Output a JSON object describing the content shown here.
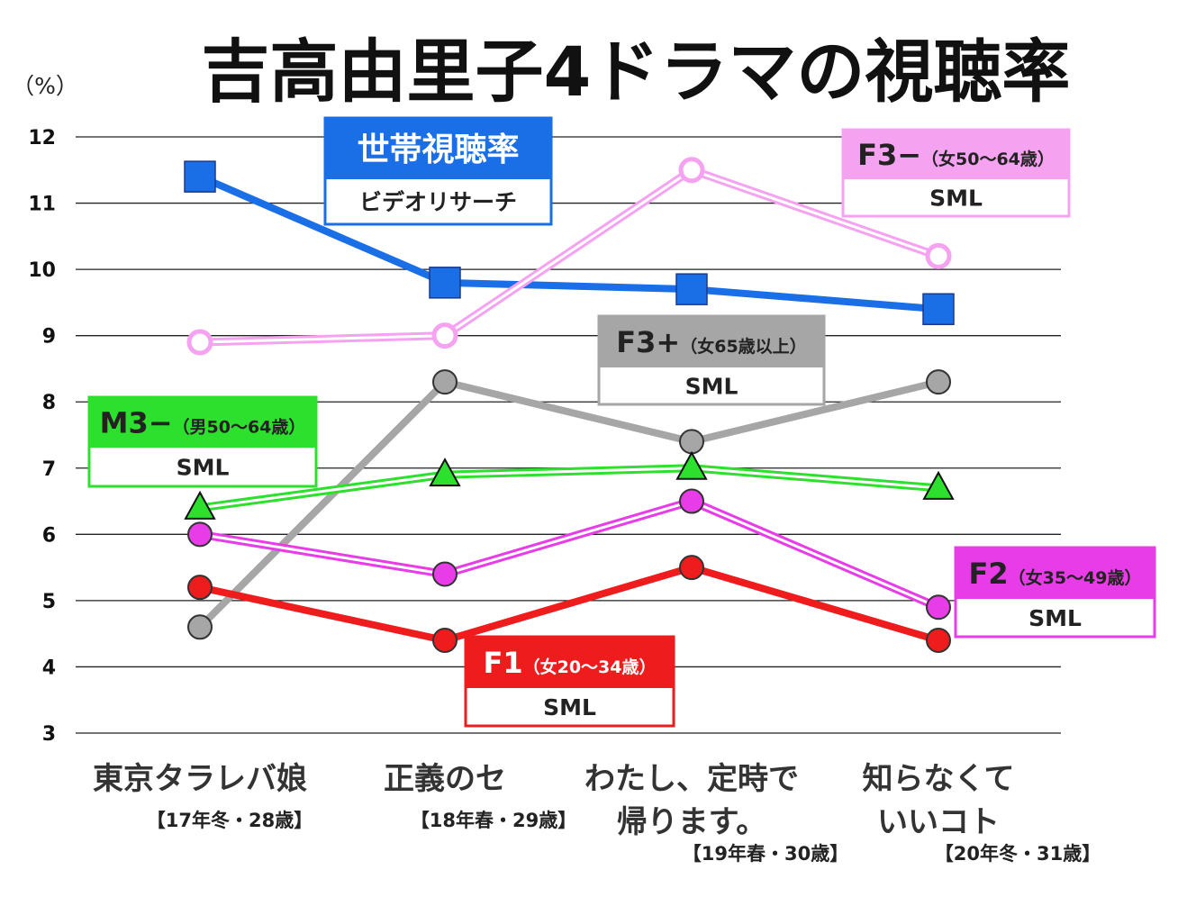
{
  "chart_data": {
    "type": "line",
    "title": "吉高由里子4ドラマの視聴率",
    "ylabel": "（%）",
    "ylim": [
      3,
      12
    ],
    "yticks": [
      3,
      4,
      5,
      6,
      7,
      8,
      9,
      10,
      11,
      12
    ],
    "grid": true,
    "categories": [
      {
        "lines": [
          "東京タラレバ娘"
        ],
        "note": "【17年冬・28歳】"
      },
      {
        "lines": [
          "正義のセ"
        ],
        "note": "【18年春・29歳】"
      },
      {
        "lines": [
          "わたし、定時で",
          "帰ります。"
        ],
        "note": "【19年春・30歳】"
      },
      {
        "lines": [
          "知らなくて",
          "いいコト"
        ],
        "note": "【20年冬・31歳】"
      }
    ],
    "series": [
      {
        "name": "世帯視聴率",
        "source": "ビデオリサーチ",
        "values": [
          11.4,
          9.8,
          9.7,
          9.4
        ],
        "color": "#1a6fe6",
        "style": "thick",
        "marker": "square"
      },
      {
        "name": "F3−",
        "sub": "（女50〜64歳）",
        "source": "SML",
        "values": [
          8.9,
          9.0,
          11.5,
          10.2
        ],
        "color": "#f5a3f0",
        "style": "double",
        "marker": "circle-open"
      },
      {
        "name": "F3+",
        "sub": "（女65歳以上）",
        "source": "SML",
        "values": [
          4.6,
          8.3,
          7.4,
          8.3
        ],
        "color": "#a6a6a6",
        "style": "thick",
        "marker": "circle"
      },
      {
        "name": "M3−",
        "sub": "（男50〜64歳）",
        "source": "SML",
        "values": [
          6.4,
          6.9,
          7.0,
          6.7
        ],
        "color": "#2ee02e",
        "style": "double",
        "marker": "triangle"
      },
      {
        "name": "F2",
        "sub": "（女35〜49歳）",
        "source": "SML",
        "values": [
          6.0,
          5.4,
          6.5,
          4.9
        ],
        "color": "#e83ce8",
        "style": "double",
        "marker": "circle"
      },
      {
        "name": "F1",
        "sub": "（女20〜34歳）",
        "source": "SML",
        "values": [
          5.2,
          4.4,
          5.5,
          4.4
        ],
        "color": "#ee1c1c",
        "style": "thick",
        "marker": "circle"
      }
    ]
  }
}
